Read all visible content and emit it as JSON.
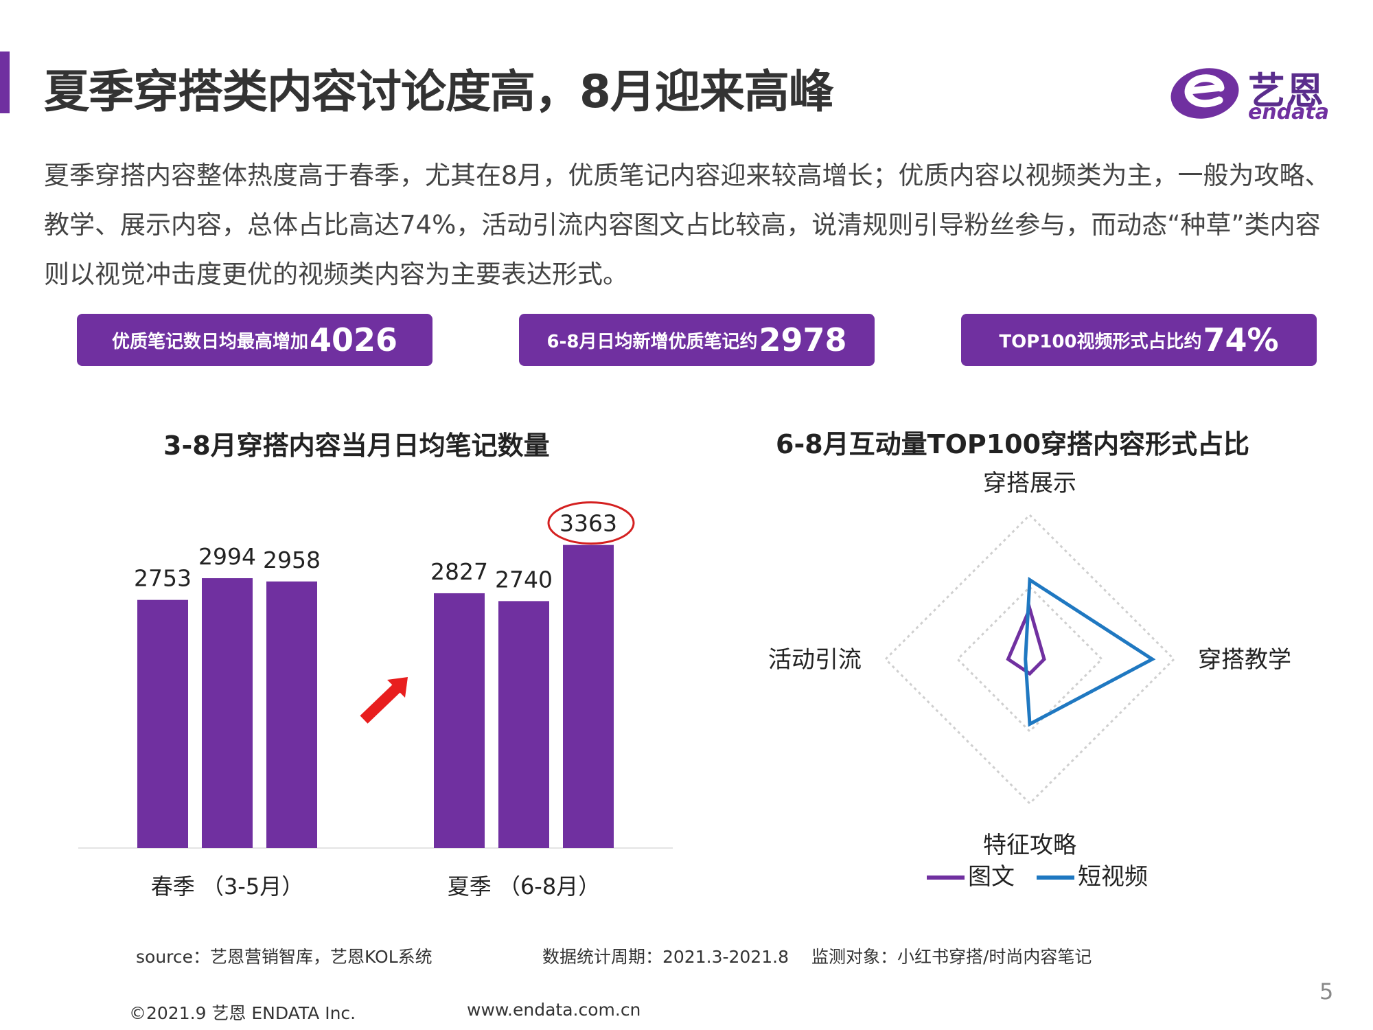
{
  "header": {
    "title": "夏季穿搭类内容讨论度高，8月迎来高峰",
    "logo_cn": "艺恩",
    "logo_en": "endata"
  },
  "description": "夏季穿搭内容整体热度高于春季，尤其在8月，优质笔记内容迎来较高增长；优质内容以视频类为主，一般为攻略、教学、展示内容，总体占比高达74%，活动引流内容图文占比较高，说清规则引导粉丝参与，而动态“种草”类内容则以视觉冲击度更优的视频类内容为主要表达形式。",
  "kpis": [
    {
      "label": "优质笔记数日均最高增加",
      "value": "4026"
    },
    {
      "label": "6-8月日均新增优质笔记约",
      "value": "2978"
    },
    {
      "label": "TOP100视频形式占比约",
      "value": "74%"
    }
  ],
  "colors": {
    "accent": "#7030a0",
    "image_text": "#7030a0",
    "short_video": "#1f78c1",
    "highlight_circle": "#d42020",
    "arrow": "#e81e1e"
  },
  "chart_data": [
    {
      "type": "bar",
      "title": "3-8月穿搭内容当月日均笔记数量",
      "groups": [
        {
          "label": "春季  （3-5月）",
          "values": [
            2753,
            2994,
            2958
          ]
        },
        {
          "label": "夏季  （6-8月）",
          "values": [
            2827,
            2740,
            3363
          ]
        }
      ],
      "highlight_value": 3363,
      "ylim": [
        0,
        4000
      ],
      "grid": false,
      "legend": "none"
    },
    {
      "type": "radar",
      "title": "6-8月互动量TOP100穿搭内容形式占比",
      "axes": [
        "穿搭展示",
        "穿搭教学",
        "特征攻略",
        "活动引流"
      ],
      "rmax": 1.0,
      "rings": [
        0.5,
        1.0
      ],
      "series": [
        {
          "name": "图文",
          "values": [
            0.35,
            0.1,
            0.1,
            0.15
          ],
          "color": "#7030a0"
        },
        {
          "name": "短视频",
          "values": [
            0.55,
            0.85,
            0.45,
            0.03
          ],
          "color": "#1f78c1"
        }
      ],
      "legend_position": "bottom"
    }
  ],
  "footer": {
    "source": "source：艺恩营销智库，艺恩KOL系统",
    "period": "数据统计周期：2021.3-2021.8",
    "target": "监测对象：小红书穿搭/时尚内容笔记",
    "copyright": "©2021.9 艺恩 ENDATA Inc.",
    "website": "www.endata.com.cn",
    "page_number": "5"
  }
}
